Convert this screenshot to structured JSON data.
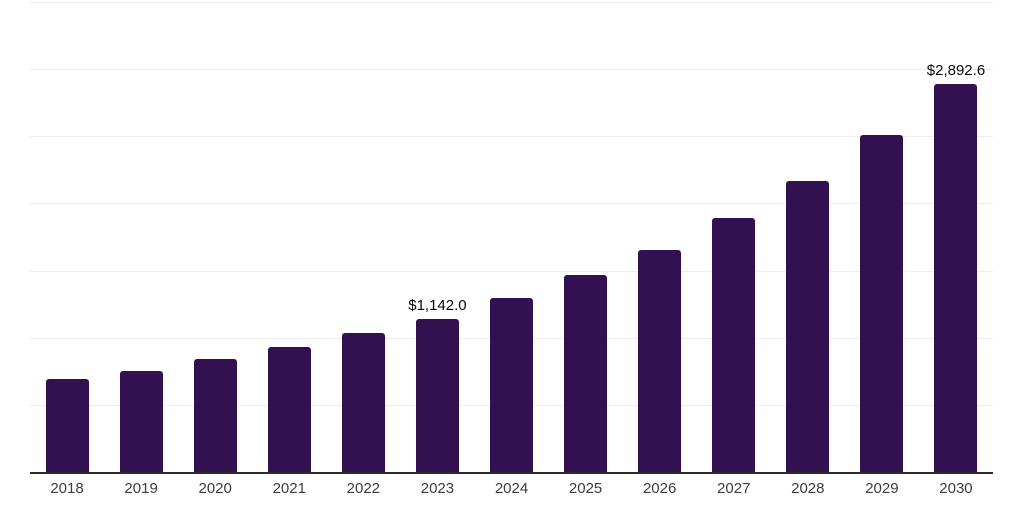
{
  "chart_data": {
    "type": "bar",
    "title": "",
    "subtitle": "",
    "xlabel": "",
    "ylabel": "",
    "ylim": [
      0,
      3500
    ],
    "gridline_intervals": 7,
    "grid": "horizontal-only",
    "legend": "none",
    "y_axis_tick_labels": "none",
    "categories": [
      "2018",
      "2019",
      "2020",
      "2021",
      "2022",
      "2023",
      "2024",
      "2025",
      "2026",
      "2027",
      "2028",
      "2029",
      "2030"
    ],
    "values": [
      690,
      754,
      838,
      932,
      1033,
      1142.0,
      1293,
      1466,
      1651,
      1889,
      2167,
      2507,
      2892.6
    ],
    "data_labels": {
      "2023": "$1,142.0",
      "2030": "$2,892.6"
    },
    "colors": {
      "bar": "#331150",
      "gridline": "#ededed",
      "axis": "#2a2a2a",
      "tick_label": "#3d3d3d",
      "data_label": "#0a0a0a",
      "background": "#ffffff"
    }
  }
}
